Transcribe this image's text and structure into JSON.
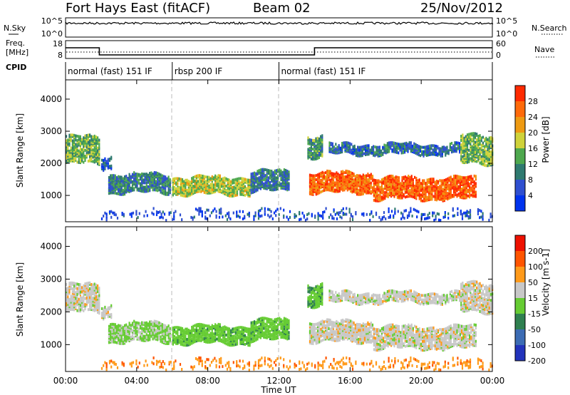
{
  "header": {
    "station": "Fort Hays East (fitACF)",
    "beam": "Beam 02",
    "date": "25/Nov/2012"
  },
  "panels": {
    "nsky_label": "N.Sky",
    "nsky_ticks": [
      "10^5",
      "10^0"
    ],
    "nsearch_label": "N.Search",
    "nsearch_ticks": [
      "10^5",
      "10^0"
    ],
    "freq_label": "Freq.",
    "freq_unit": "[MHz]",
    "freq_ticks": [
      "18",
      "8"
    ],
    "nave_label": "Nave",
    "nave_ticks": [
      "60",
      "0"
    ],
    "cpid_label": "CPID"
  },
  "chart_data": {
    "type": "heatmap",
    "xlabel": "Time UT",
    "x_ticks": [
      "00:00",
      "04:00",
      "08:00",
      "12:00",
      "16:00",
      "20:00",
      "00:00"
    ],
    "xlim_hours": [
      0,
      24
    ],
    "cpid_segments": [
      {
        "start_h": 0,
        "end_h": 6,
        "label": "normal (fast) 151 IF"
      },
      {
        "start_h": 6,
        "end_h": 12,
        "label": "rbsp 200 IF"
      },
      {
        "start_h": 12,
        "end_h": 24,
        "label": "normal (fast) 151 IF"
      }
    ],
    "frequency_steps_mhz": [
      {
        "start_h": 0,
        "end_h": 1.9,
        "value": 14
      },
      {
        "start_h": 1.9,
        "end_h": 14,
        "value": 10
      },
      {
        "start_h": 14,
        "end_h": 24,
        "value": 14
      }
    ],
    "power_panel": {
      "ylabel": "Slant Range [km]",
      "yticks": [
        1000,
        2000,
        3000,
        4000
      ],
      "ylim_km": [
        180,
        4600
      ],
      "colorbar_label": "Power [dB]",
      "colorbar_ticks": [
        "28",
        "24",
        "20",
        "16",
        "12",
        "8",
        "4"
      ],
      "colors": [
        "#0033ee",
        "#2f4fd0",
        "#2f7a70",
        "#4ea84e",
        "#cfd23a",
        "#ee9a12",
        "#ff6a0a",
        "#ff2a00"
      ]
    },
    "velocity_panel": {
      "ylabel": "Slant Range [km]",
      "yticks": [
        1000,
        2000,
        3000,
        4000
      ],
      "ylim_km": [
        180,
        4600
      ],
      "colorbar_label": "Velocity [m s-1]",
      "colorbar_ticks": [
        "200",
        "100",
        "50",
        "15",
        "-15",
        "-50",
        "-100",
        "-200"
      ],
      "colors": [
        "#2233bb",
        "#3c6cb4",
        "#2f8050",
        "#66cc33",
        "#c8c8c8",
        "#ff9a1a",
        "#ff5500",
        "#ee1100"
      ]
    },
    "echo_regions": [
      {
        "t0": 0.0,
        "t1": 1.9,
        "r0": 2000,
        "r1": 2850,
        "power": 14,
        "velocity": 0
      },
      {
        "t0": 2.0,
        "t1": 2.6,
        "r0": 1850,
        "r1": 2250,
        "power": 6,
        "velocity": 0
      },
      {
        "t0": 2.4,
        "t1": 5.9,
        "r0": 1100,
        "r1": 1650,
        "power": 10,
        "velocity": 20
      },
      {
        "t0": 6.0,
        "t1": 10.4,
        "r0": 1050,
        "r1": 1550,
        "power": 17,
        "velocity": 35
      },
      {
        "t0": 10.4,
        "t1": 12.6,
        "r0": 1150,
        "r1": 1750,
        "power": 9,
        "velocity": 35
      },
      {
        "t0": 13.7,
        "t1": 17.3,
        "r0": 1100,
        "r1": 1700,
        "power": 26,
        "velocity": 0
      },
      {
        "t0": 17.3,
        "t1": 23.1,
        "r0": 900,
        "r1": 1550,
        "power": 27,
        "velocity": 0
      },
      {
        "t0": 14.8,
        "t1": 22.2,
        "r0": 2300,
        "r1": 2600,
        "power": 8,
        "velocity": 0
      },
      {
        "t0": 22.2,
        "t1": 24.0,
        "r0": 2000,
        "r1": 2900,
        "power": 15,
        "velocity": 0
      },
      {
        "t0": 13.6,
        "t1": 14.4,
        "r0": 2200,
        "r1": 2850,
        "power": 12,
        "velocity": 40
      },
      {
        "t0": 2.0,
        "t1": 24.0,
        "r0": 250,
        "r1": 550,
        "power": 5,
        "velocity": -40
      }
    ]
  }
}
